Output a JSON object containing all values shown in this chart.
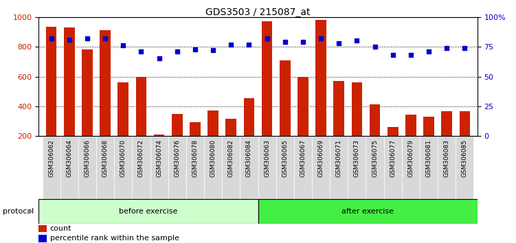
{
  "title": "GDS3503 / 215087_at",
  "samples": [
    "GSM306062",
    "GSM306064",
    "GSM306066",
    "GSM306068",
    "GSM306070",
    "GSM306072",
    "GSM306074",
    "GSM306076",
    "GSM306078",
    "GSM306080",
    "GSM306082",
    "GSM306084",
    "GSM306063",
    "GSM306065",
    "GSM306067",
    "GSM306069",
    "GSM306071",
    "GSM306073",
    "GSM306075",
    "GSM306077",
    "GSM306079",
    "GSM306081",
    "GSM306083",
    "GSM306085"
  ],
  "counts": [
    935,
    930,
    780,
    910,
    560,
    600,
    210,
    350,
    295,
    370,
    315,
    455,
    970,
    710,
    600,
    980,
    570,
    560,
    415,
    260,
    345,
    330,
    365,
    365
  ],
  "percentiles": [
    82,
    81,
    82,
    82,
    76,
    71,
    65,
    71,
    73,
    72,
    77,
    77,
    82,
    79,
    79,
    82,
    78,
    80,
    75,
    68,
    68,
    71,
    74,
    74
  ],
  "before_count": 12,
  "after_count": 12,
  "bar_color": "#cc2200",
  "dot_color": "#0000cc",
  "before_color": "#ccffcc",
  "after_color": "#44ee44",
  "protocol_label": "protocol",
  "before_label": "before exercise",
  "after_label": "after exercise",
  "legend_count": "count",
  "legend_pct": "percentile rank within the sample",
  "ylim_left": [
    200,
    1000
  ],
  "ylim_right": [
    0,
    100
  ],
  "yticks_left": [
    200,
    400,
    600,
    800,
    1000
  ],
  "yticks_right": [
    0,
    25,
    50,
    75,
    100
  ],
  "ytick_right_labels": [
    "0",
    "25",
    "50",
    "75",
    "100%"
  ],
  "grid_lines": [
    400,
    600,
    800
  ],
  "title_fontsize": 10,
  "tick_fontsize": 6.5
}
